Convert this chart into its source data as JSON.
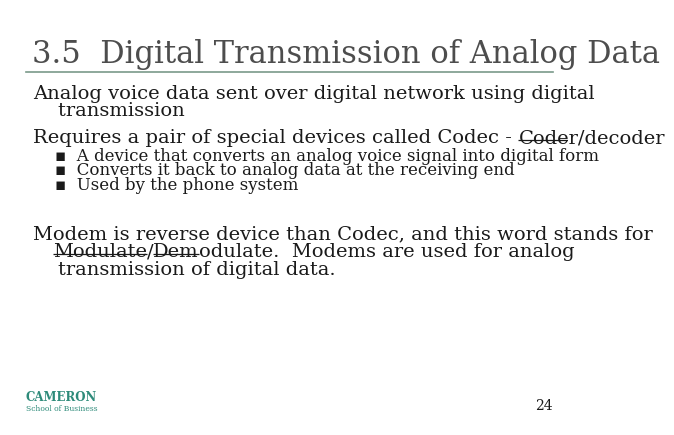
{
  "title": "3.5  Digital Transmission of Analog Data",
  "title_color": "#4d4d4d",
  "title_fontsize": 22,
  "separator_color": "#7a9a8a",
  "background_color": "#ffffff",
  "text_color": "#1a1a1a",
  "page_number": "24",
  "body_fontsize": 14,
  "bullet_fontsize": 12,
  "para1_line1": "Analog voice data sent over digital network using digital",
  "para1_line2": "    transmission",
  "para2_intro": "Requires a pair of special devices called Codec - ",
  "para2_underline": "Coder/decoder",
  "bullets": [
    "A device that converts an analog voice signal into digital form",
    "Converts it back to analog data at the receiving end",
    "Used by the phone system"
  ],
  "para3_line1": "Modem is reverse device than Codec, and this word stands for",
  "para3_underline1": "Modulate",
  "para3_slash": "/",
  "para3_underline2": "Dem",
  "para3_line2_rest": "odulate.  Modems are used for analog",
  "para3_line3": "    transmission of digital data.",
  "cameron_text": "CAMERON",
  "cameron_sub": "School of Business",
  "cameron_color": "#2e8b7a"
}
